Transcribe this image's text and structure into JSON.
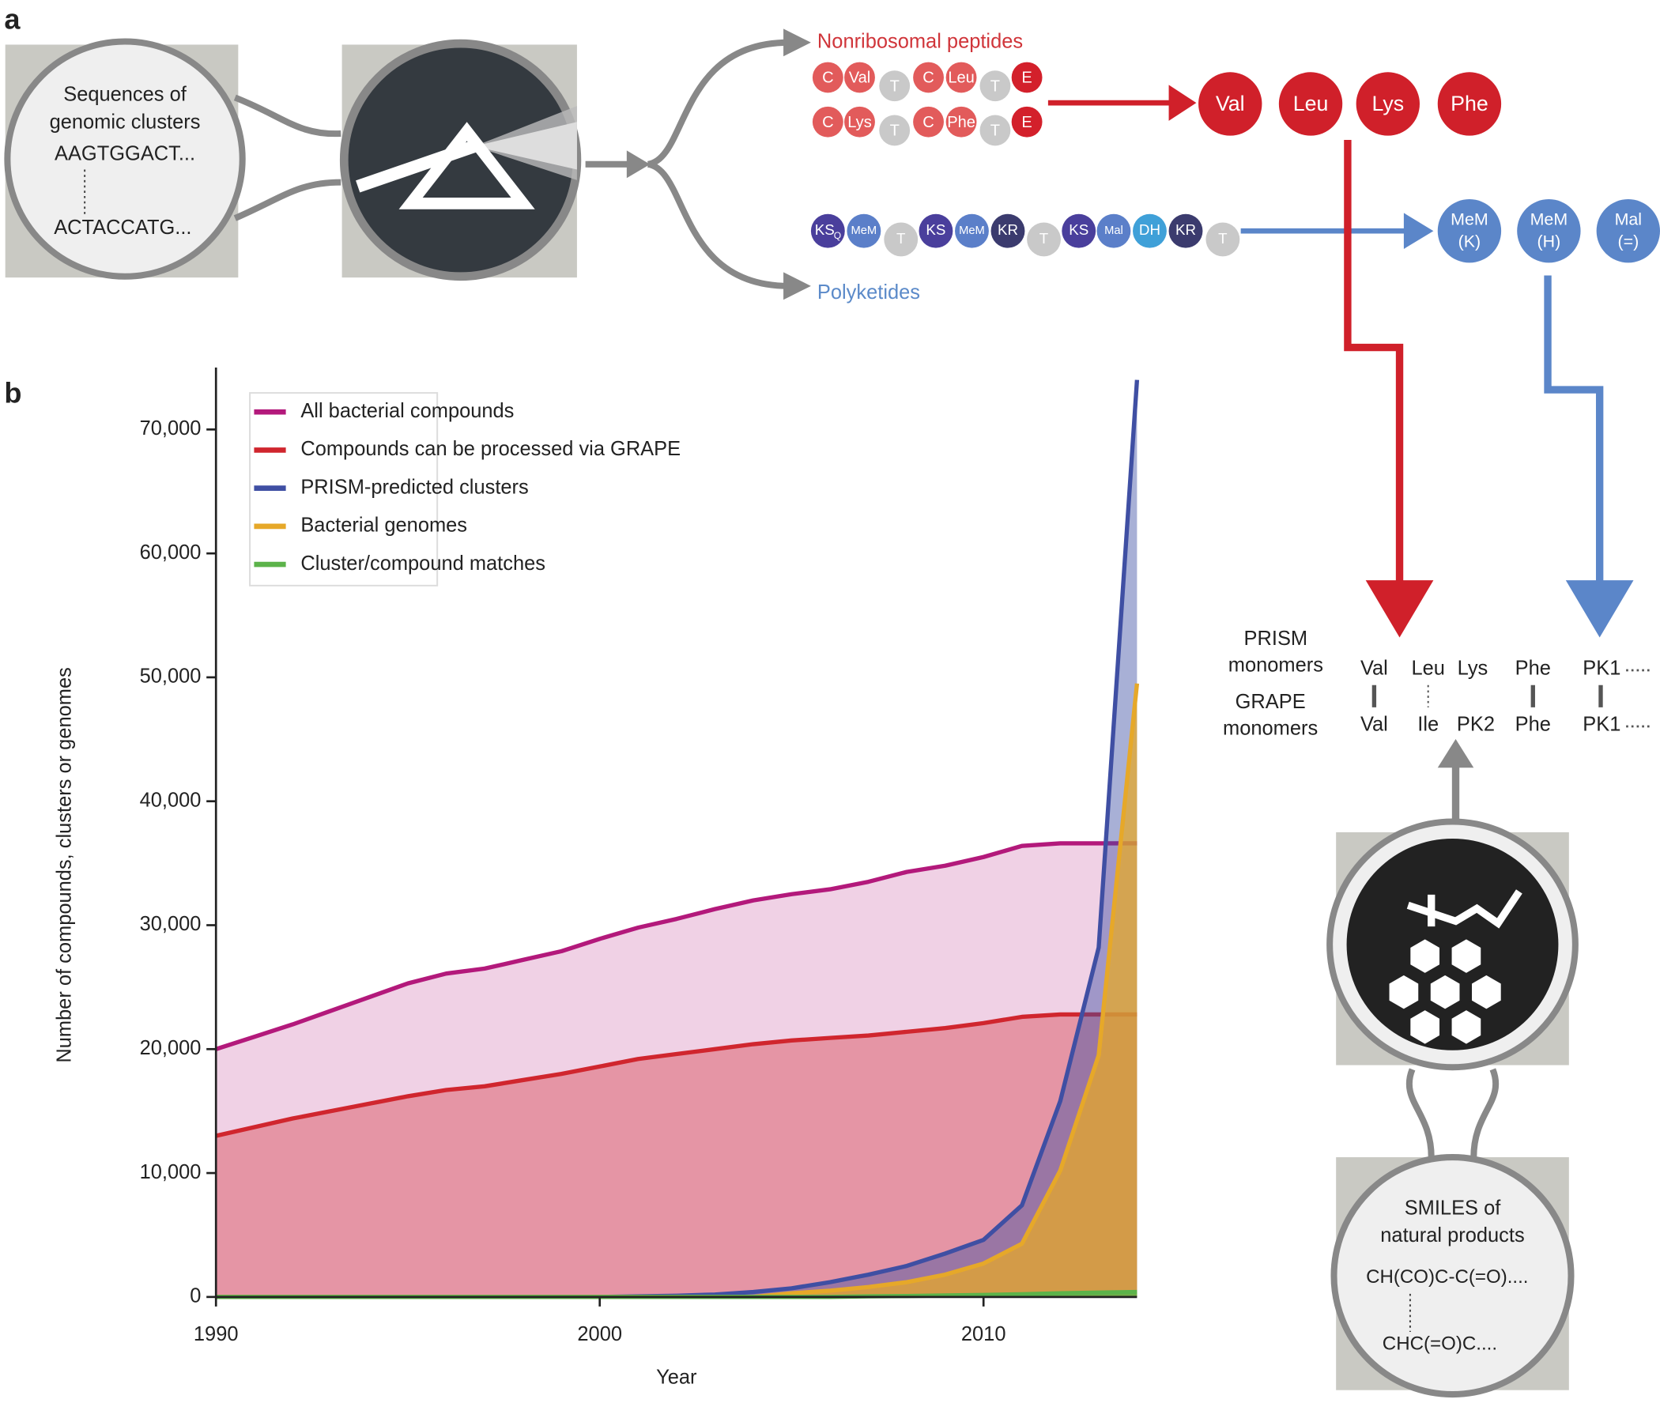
{
  "panel_labels": [
    "a",
    "b"
  ],
  "diagram": {
    "sequence_box": {
      "title": [
        "Sequences of",
        "genomic clusters"
      ],
      "sequences": [
        "AAGTGGACT...",
        "ACTACCATG..."
      ]
    },
    "branches": {
      "nrp": "Nonribosomal peptides",
      "pk": "Polyketides"
    },
    "nrps_rows": [
      [
        "C",
        "Val",
        "T",
        "C",
        "Leu",
        "T",
        "E"
      ],
      [
        "C",
        "Lys",
        "T",
        "C",
        "Phe",
        "T",
        "E"
      ]
    ],
    "nrp_monomers": [
      "Val",
      "Leu",
      "Lys",
      "Phe"
    ],
    "pks_domains": [
      "KS",
      "MeM",
      "T",
      "KS",
      "MeM",
      "KR",
      "T",
      "KS",
      "Mal",
      "DH",
      "KR",
      "T"
    ],
    "pks_first_subscript": "Q",
    "pk_monomers": [
      [
        "MeM",
        "(K)"
      ],
      [
        "MeM",
        "(H)"
      ],
      [
        "Mal",
        "(=)"
      ]
    ],
    "comparison": {
      "prism_label": [
        "PRISM",
        "monomers"
      ],
      "grape_label": [
        "GRAPE",
        "monomers"
      ],
      "prism": [
        "Val",
        "Leu",
        "Lys",
        "Phe",
        "PK1"
      ],
      "grape": [
        "Val",
        "Ile",
        "PK2",
        "Phe",
        "PK1"
      ]
    },
    "smiles_box": {
      "title": [
        "SMILES of",
        "natural products"
      ],
      "smiles": [
        "CH(CO)C-C(=O)....",
        "CHC(=O)C...."
      ]
    }
  },
  "chart_data": {
    "type": "area",
    "x_label": "Year",
    "y_label": "Number of  compounds, clusters or genomes",
    "x": [
      1990,
      1991,
      1992,
      1993,
      1994,
      1995,
      1996,
      1997,
      1998,
      1999,
      2000,
      2001,
      2002,
      2003,
      2004,
      2005,
      2006,
      2007,
      2008,
      2009,
      2010,
      2011,
      2012,
      2013,
      2014
    ],
    "series": [
      {
        "name": "All bacterial compounds",
        "color": "#b3197b",
        "values": [
          20000,
          21000,
          22000,
          23100,
          24200,
          25300,
          26100,
          26500,
          27200,
          27900,
          28900,
          29800,
          30500,
          31300,
          32000,
          32500,
          32900,
          33500,
          34300,
          34800,
          35500,
          36400,
          36600,
          36600,
          36600
        ]
      },
      {
        "name": "Compounds can be processed via GRAPE",
        "color": "#d0262e",
        "values": [
          13000,
          13700,
          14400,
          15000,
          15600,
          16200,
          16700,
          17000,
          17500,
          18000,
          18600,
          19200,
          19600,
          20000,
          20400,
          20700,
          20900,
          21100,
          21400,
          21700,
          22100,
          22600,
          22800,
          22800,
          22800
        ]
      },
      {
        "name": "PRISM-predicted clusters",
        "color": "#3f4fa3",
        "values": [
          0,
          0,
          0,
          0,
          0,
          0,
          0,
          0,
          0,
          0,
          0,
          50,
          100,
          200,
          400,
          700,
          1200,
          1800,
          2500,
          3500,
          4600,
          7400,
          15800,
          28200,
          74000
        ]
      },
      {
        "name": "Bacterial genomes",
        "color": "#e6a829",
        "values": [
          0,
          0,
          0,
          0,
          0,
          0,
          0,
          0,
          0,
          0,
          0,
          0,
          0,
          0,
          0,
          300,
          500,
          800,
          1200,
          1800,
          2700,
          4300,
          10200,
          19500,
          49500
        ]
      },
      {
        "name": "Cluster/compound matches",
        "color": "#5cb34a",
        "values": [
          0,
          0,
          0,
          0,
          0,
          0,
          0,
          0,
          0,
          0,
          0,
          0,
          0,
          0,
          0,
          0,
          0,
          50,
          80,
          120,
          160,
          220,
          300,
          350,
          400
        ]
      }
    ],
    "xlim": [
      1990,
      2014
    ],
    "xticks": [
      1990,
      2000,
      2010
    ],
    "ylim": [
      0,
      75000
    ],
    "yticks": [
      0,
      {
        "value": 10000,
        "label": "10,000"
      },
      {
        "value": 20000,
        "label": "20,000"
      },
      {
        "value": 30000,
        "label": "30,000"
      },
      {
        "value": 40000,
        "label": "40,000"
      },
      {
        "value": 50000,
        "label": "50,000"
      },
      {
        "value": 60000,
        "label": "60,000"
      },
      {
        "value": 70000,
        "label": "70,000"
      }
    ],
    "grid": false,
    "legend": "upper left"
  }
}
